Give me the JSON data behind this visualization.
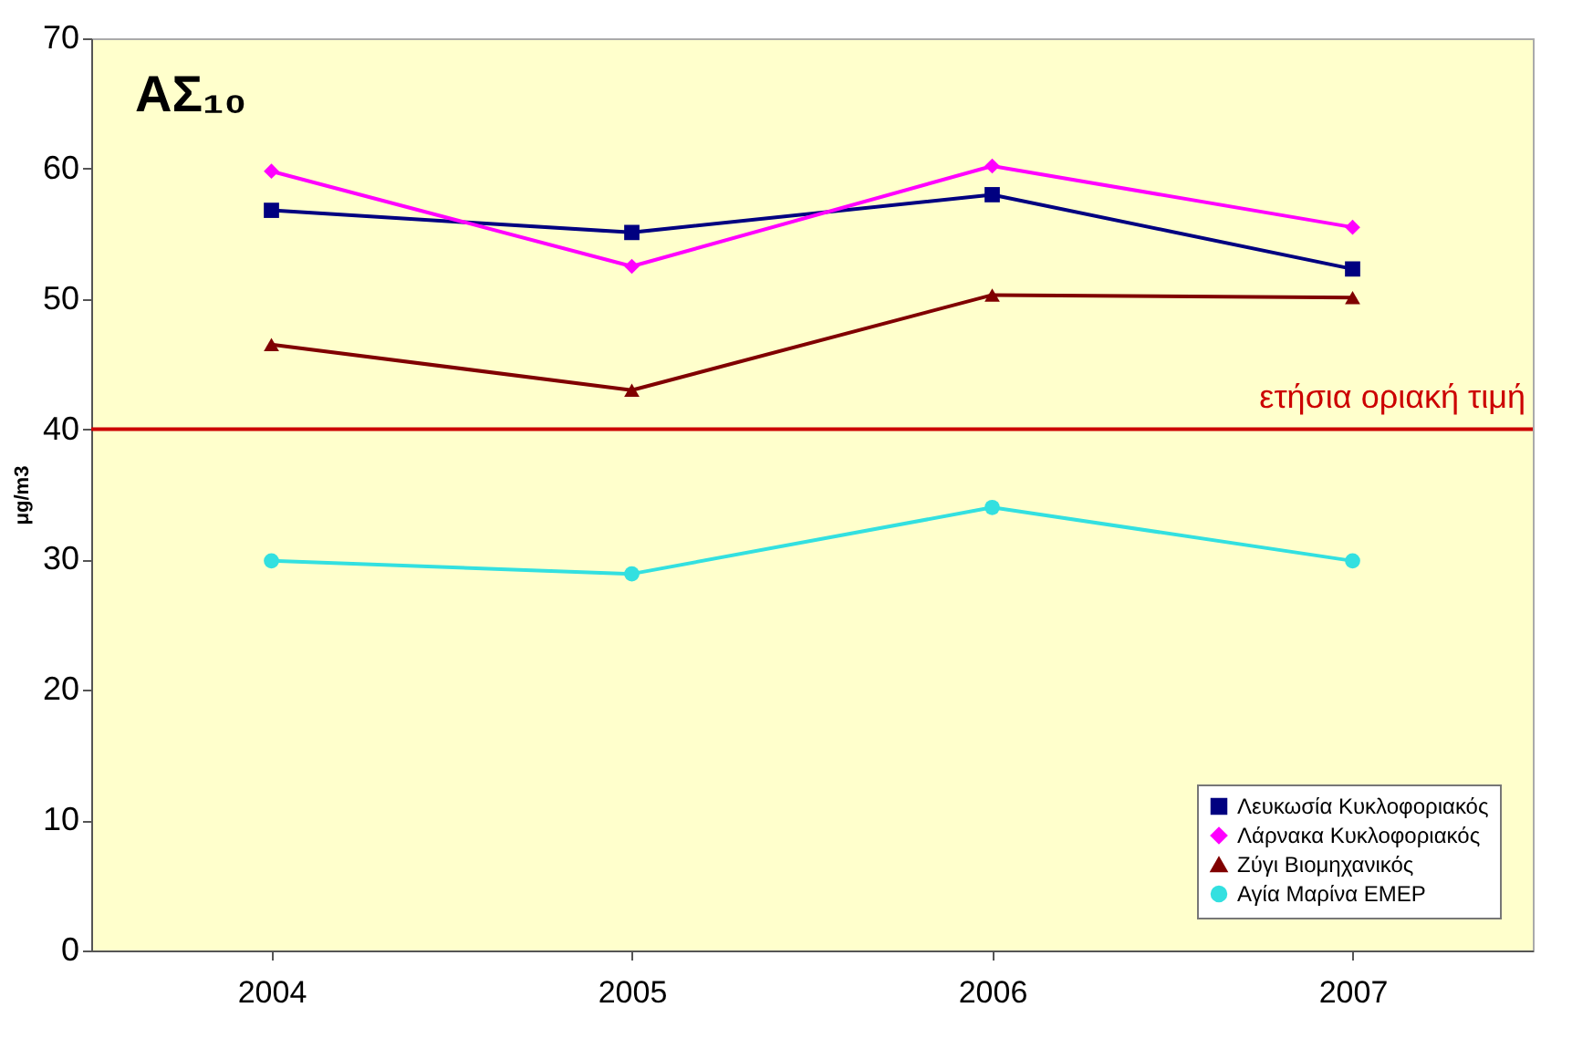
{
  "chart_data": {
    "type": "line",
    "title": "ΑΣ₁₀",
    "ylabel": "μg/m3",
    "categories": [
      "2004",
      "2005",
      "2006",
      "2007"
    ],
    "series": [
      {
        "name": "Λευκωσία Κυκλοφοριακός",
        "color": "#000080",
        "marker": "square",
        "values": [
          56.8,
          55.1,
          58.0,
          52.3
        ]
      },
      {
        "name": "Λάρνακα Κυκλοφοριακός",
        "color": "#ff00ff",
        "marker": "diamond",
        "values": [
          59.8,
          52.5,
          60.2,
          55.5
        ]
      },
      {
        "name": "Ζύγι Βιομηχανικός",
        "color": "#800000",
        "marker": "triangle",
        "values": [
          46.5,
          43.0,
          50.3,
          50.1
        ]
      },
      {
        "name": "Αγία Μαρίνα EMEP",
        "color": "#33e0e0",
        "marker": "circle",
        "values": [
          29.9,
          28.9,
          34.0,
          29.9
        ]
      }
    ],
    "ylim": [
      0,
      70
    ],
    "yticks": [
      0,
      10,
      20,
      30,
      40,
      50,
      60,
      70
    ],
    "ref_lines": [
      {
        "axis": "y",
        "value": 40,
        "label": "ετήσια οριακή τιμή",
        "color": "#cc0000"
      }
    ],
    "grid": false,
    "legend": "bottom right",
    "line_style": "solid"
  }
}
